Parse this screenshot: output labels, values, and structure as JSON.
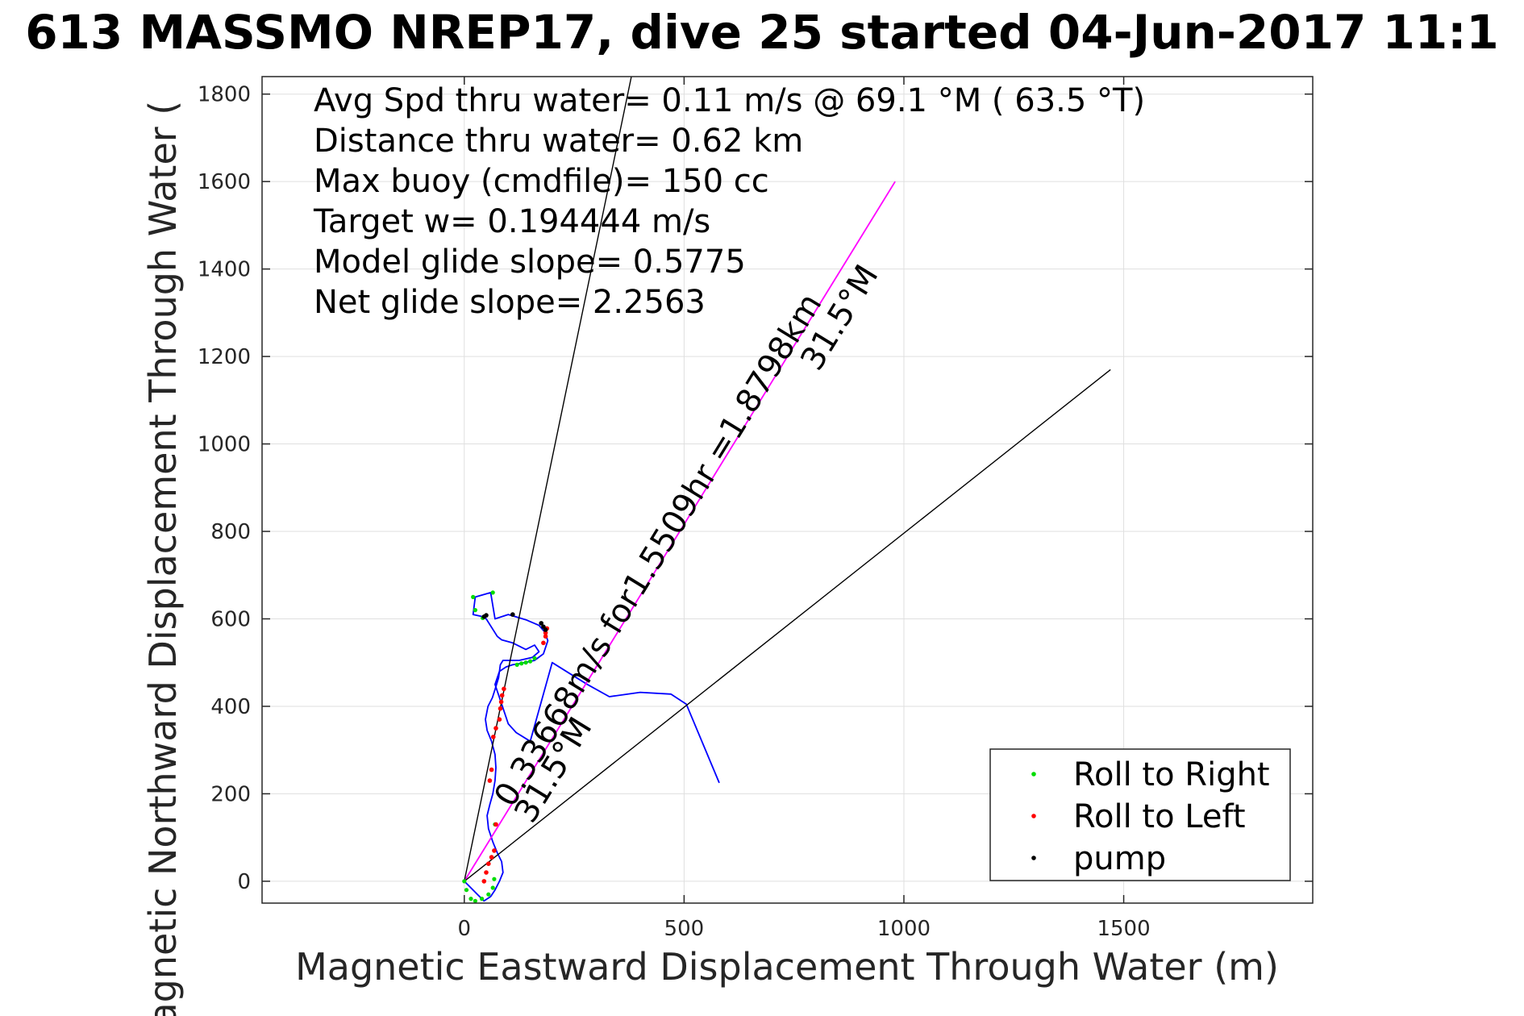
{
  "chart_data": {
    "type": "scatter",
    "title": "613 MASSMO NREP17, dive 25 started 04-Jun-2017 11:1",
    "xlabel": "Magnetic Eastward Displacement Through Water (m)",
    "ylabel": "Magnetic Northward Displacement Through Water (",
    "xlim": [
      -460,
      1930
    ],
    "ylim": [
      -50,
      1840
    ],
    "xticks": [
      0,
      500,
      1000,
      1500
    ],
    "yticks": [
      0,
      200,
      400,
      600,
      800,
      1000,
      1200,
      1400,
      1600,
      1800
    ],
    "grid": true,
    "legend_position": "bottom-right",
    "annotations": [
      "Avg Spd thru water=  0.11 m/s @  69.1 °M ( 63.5 °T)",
      "Distance thru water=  0.62 km",
      "Max buoy (cmdfile)= 150 cc",
      "Target w= 0.194444 m/s",
      "Model glide slope= 0.5775",
      "Net glide slope= 2.2563"
    ],
    "diagonal_labels": {
      "main": "0.33668m/s for1.5509hr =1.8798km",
      "heading_end": "31.5°M",
      "heading_start": "31.5°M"
    },
    "colors": {
      "trajectory": "#0000ff",
      "bearing": "#ff00ff",
      "roll_right": "#00dd00",
      "roll_left": "#ff0000",
      "pump": "#000000",
      "ray": "#000000"
    },
    "series": [
      {
        "name": "track",
        "kind": "line",
        "x": [
          0,
          10,
          30,
          45,
          60,
          70,
          80,
          88,
          85,
          75,
          65,
          55,
          52,
          58,
          65,
          70,
          72,
          70,
          62,
          52,
          48,
          54,
          64,
          72,
          78,
          80,
          82,
          88,
          100,
          125,
          155,
          170,
          160,
          140,
          110,
          85,
          75,
          50,
          42,
          20,
          25,
          60,
          70,
          100,
          140,
          170,
          183,
          190,
          180,
          160,
          128,
          110,
          95,
          80,
          70,
          80,
          90,
          100,
          118,
          150,
          200,
          240,
          280,
          330,
          400,
          470,
          505,
          580
        ],
        "y": [
          0,
          -10,
          -30,
          -45,
          -35,
          -20,
          0,
          20,
          45,
          65,
          90,
          120,
          150,
          175,
          200,
          230,
          260,
          290,
          320,
          345,
          370,
          400,
          420,
          445,
          465,
          480,
          495,
          505,
          505,
          505,
          512,
          525,
          540,
          530,
          545,
          552,
          560,
          600,
          605,
          610,
          650,
          660,
          600,
          610,
          598,
          585,
          570,
          550,
          520,
          505,
          498,
          495,
          490,
          480,
          450,
          420,
          390,
          360,
          340,
          320,
          500,
          475,
          450,
          422,
          432,
          428,
          405,
          225
        ]
      },
      {
        "name": "Roll to Right",
        "kind": "points",
        "x": [
          0,
          5,
          15,
          25,
          40,
          55,
          65,
          68,
          70,
          120,
          130,
          140,
          150,
          160,
          42,
          25,
          20,
          65
        ],
        "y": [
          0,
          -20,
          -40,
          -45,
          -40,
          -30,
          -15,
          5,
          130,
          495,
          498,
          500,
          503,
          510,
          602,
          620,
          650,
          660
        ]
      },
      {
        "name": "Roll to Left",
        "kind": "points",
        "x": [
          45,
          50,
          55,
          62,
          68,
          72,
          58,
          62,
          66,
          72,
          80,
          82,
          84,
          86,
          90,
          185,
          188,
          185,
          180
        ],
        "y": [
          0,
          20,
          40,
          55,
          70,
          130,
          230,
          255,
          330,
          350,
          370,
          395,
          410,
          425,
          440,
          568,
          578,
          560,
          545
        ]
      },
      {
        "name": "pump",
        "kind": "points",
        "x": [
          45,
          50,
          110,
          175,
          180,
          185
        ],
        "y": [
          605,
          608,
          610,
          590,
          582,
          575
        ]
      },
      {
        "name": "bearing",
        "kind": "line",
        "x": [
          0,
          980
        ],
        "y": [
          0,
          1600
        ]
      },
      {
        "name": "ray-1",
        "kind": "line",
        "x": [
          0,
          380
        ],
        "y": [
          0,
          1840
        ]
      },
      {
        "name": "ray-2",
        "kind": "line",
        "x": [
          0,
          1470
        ],
        "y": [
          0,
          1170
        ]
      }
    ]
  }
}
